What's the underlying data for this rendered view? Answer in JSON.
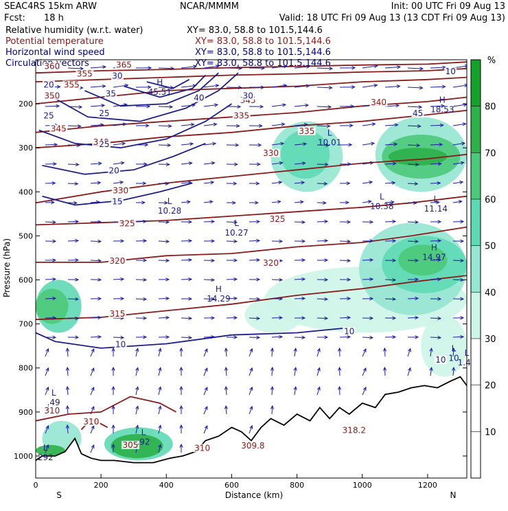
{
  "header": {
    "model": "SEAC4RS 15km ARW",
    "center": "NCAR/MMMM",
    "init": "Init: 00 UTC Fri 09 Aug 13",
    "fcst_label": "Fcst:",
    "fcst_value": "18 h",
    "valid": "Valid: 18 UTC Fri 09 Aug 13 (13 CDT Fri 09 Aug 13)"
  },
  "fields": [
    {
      "name": "Relative humidity (w.r.t. water)",
      "xy": "XY=  83.0, 58.8 to 101.5,144.6",
      "color": "#000000"
    },
    {
      "name": "Potential temperature",
      "xy": "XY=  83.0, 58.8 to 101.5,144.6",
      "color": "#8b1a1a"
    },
    {
      "name": "Horizontal wind speed",
      "xy": "XY=  83.0, 58.8 to 101.5,144.6",
      "color": "#00007f"
    },
    {
      "name": "Circulation vectors",
      "xy": "XY=  83.0, 58.8 to 101.5,144.6",
      "color": "#00007f"
    }
  ],
  "colors": {
    "theta": "#8b1a1a",
    "wind": "#1c1c8c",
    "vector": "#1a1aa0",
    "terrain": "#000000"
  },
  "chart_data": {
    "type": "heatmap",
    "xlabel": "Distance (km)",
    "ylabel": "Pressure (hPa)",
    "xlim": [
      0,
      1320
    ],
    "ylim": [
      1050,
      100
    ],
    "x_ticks": [
      0,
      200,
      400,
      600,
      800,
      1000,
      1200
    ],
    "y_ticks": [
      200,
      300,
      400,
      500,
      600,
      700,
      800,
      900,
      1000
    ],
    "end_labels": {
      "left": "S",
      "right": "N"
    },
    "colorbar": {
      "unit": "%",
      "levels": [
        10,
        20,
        30,
        40,
        50,
        60,
        70,
        80
      ],
      "colors": [
        "#ffffff",
        "#ffffff",
        "#ffffff",
        "#cdf5e8",
        "#96e6d2",
        "#5fd9b4",
        "#4cc97a",
        "#2eb04a",
        "#14a02a"
      ]
    },
    "rh_regions": [
      {
        "x": [
          20,
          140
        ],
        "p": [
          1000,
          920
        ],
        "rh": 45
      },
      {
        "x": [
          0,
          140
        ],
        "p": [
          720,
          600
        ],
        "rh": 50
      },
      {
        "x": [
          0,
          100
        ],
        "p": [
          700,
          620
        ],
        "rh": 65
      },
      {
        "x": [
          0,
          90
        ],
        "p": [
          1000,
          975
        ],
        "rh": 75
      },
      {
        "x": [
          210,
          420
        ],
        "p": [
          1010,
          935
        ],
        "rh": 50
      },
      {
        "x": [
          230,
          390
        ],
        "p": [
          1005,
          950
        ],
        "rh": 75
      },
      {
        "x": [
          720,
          940
        ],
        "p": [
          400,
          240
        ],
        "rh": 40
      },
      {
        "x": [
          750,
          900
        ],
        "p": [
          370,
          260
        ],
        "rh": 50
      },
      {
        "x": [
          1040,
          1320
        ],
        "p": [
          400,
          230
        ],
        "rh": 45
      },
      {
        "x": [
          1060,
          1300
        ],
        "p": [
          370,
          270
        ],
        "rh": 60
      },
      {
        "x": [
          1080,
          1260
        ],
        "p": [
          340,
          300
        ],
        "rh": 75
      },
      {
        "x": [
          700,
          1320
        ],
        "p": [
          720,
          570
        ],
        "rh": 35
      },
      {
        "x": [
          990,
          1320
        ],
        "p": [
          680,
          470
        ],
        "rh": 45
      },
      {
        "x": [
          1060,
          1320
        ],
        "p": [
          630,
          500
        ],
        "rh": 55
      },
      {
        "x": [
          1110,
          1260
        ],
        "p": [
          590,
          520
        ],
        "rh": 65
      },
      {
        "x": [
          1180,
          1320
        ],
        "p": [
          820,
          680
        ],
        "rh": 35
      },
      {
        "x": [
          640,
          820
        ],
        "p": [
          720,
          640
        ],
        "rh": 35
      }
    ],
    "theta_contours": [
      {
        "label": "310",
        "points": [
          [
            0,
            920
          ],
          [
            100,
            905
          ],
          [
            200,
            900
          ],
          [
            290,
            865
          ],
          [
            380,
            880
          ],
          [
            430,
            900
          ]
        ],
        "label_at": [
          50,
          900
        ]
      },
      {
        "label": "310",
        "points": [
          [
            140,
            940
          ],
          [
            170,
            915
          ],
          [
            220,
            935
          ]
        ],
        "label_at": [
          170,
          925
        ]
      },
      {
        "label": "315",
        "points": [
          [
            0,
            690
          ],
          [
            200,
            685
          ],
          [
            400,
            670
          ],
          [
            600,
            655
          ],
          [
            800,
            635
          ],
          [
            1000,
            620
          ],
          [
            1150,
            605
          ],
          [
            1320,
            590
          ]
        ],
        "label_at": [
          250,
          680
        ]
      },
      {
        "label": "320",
        "points": [
          [
            0,
            560
          ],
          [
            200,
            560
          ],
          [
            400,
            545
          ],
          [
            600,
            540
          ],
          [
            800,
            525
          ],
          [
            1000,
            515
          ],
          [
            1150,
            500
          ],
          [
            1320,
            480
          ]
        ],
        "label_at": [
          250,
          560
        ]
      },
      {
        "label": "325",
        "points": [
          [
            0,
            475
          ],
          [
            200,
            470
          ],
          [
            400,
            465
          ],
          [
            600,
            455
          ],
          [
            800,
            445
          ],
          [
            1000,
            435
          ],
          [
            1150,
            425
          ],
          [
            1320,
            410
          ]
        ],
        "label_at": [
          280,
          475
        ]
      },
      {
        "label": "330",
        "points": [
          [
            0,
            425
          ],
          [
            200,
            400
          ],
          [
            400,
            380
          ],
          [
            600,
            365
          ],
          [
            800,
            350
          ],
          [
            1000,
            335
          ],
          [
            1200,
            325
          ],
          [
            1320,
            315
          ]
        ],
        "label_at": [
          260,
          400
        ]
      },
      {
        "label": "340",
        "points": [
          [
            0,
            300
          ],
          [
            200,
            290
          ],
          [
            400,
            275
          ],
          [
            600,
            265
          ],
          [
            800,
            250
          ],
          [
            1000,
            240
          ],
          [
            1200,
            225
          ],
          [
            1320,
            215
          ]
        ],
        "label_at": [
          200,
          290
        ]
      },
      {
        "label": "345",
        "points": [
          [
            0,
            265
          ],
          [
            200,
            250
          ],
          [
            400,
            240
          ],
          [
            600,
            230
          ],
          [
            800,
            220
          ],
          [
            1000,
            205
          ],
          [
            1200,
            195
          ],
          [
            1320,
            185
          ]
        ],
        "label_at": [
          70,
          260
        ]
      },
      {
        "label": "350",
        "points": [
          [
            0,
            200
          ],
          [
            200,
            185
          ],
          [
            400,
            170
          ],
          [
            600,
            165
          ],
          [
            800,
            160
          ],
          [
            1000,
            150
          ],
          [
            1200,
            145
          ],
          [
            1320,
            140
          ]
        ],
        "label_at": [
          50,
          185
        ]
      },
      {
        "label": "355",
        "points": [
          [
            0,
            150
          ],
          [
            200,
            145
          ],
          [
            400,
            140
          ],
          [
            600,
            135
          ],
          [
            800,
            132
          ],
          [
            1000,
            128
          ],
          [
            1200,
            125
          ],
          [
            1320,
            120
          ]
        ],
        "label_at": [
          150,
          135
        ]
      },
      {
        "label": "360",
        "points": [
          [
            0,
            130
          ],
          [
            200,
            125
          ],
          [
            400,
            122
          ],
          [
            600,
            118
          ],
          [
            800,
            115
          ],
          [
            1000,
            112
          ],
          [
            1200,
            110
          ],
          [
            1320,
            105
          ]
        ],
        "label_at": [
          50,
          118
        ]
      }
    ],
    "theta_labels": [
      {
        "text": "305",
        "at": [
          290,
          978
        ]
      },
      {
        "text": "310",
        "at": [
          510,
          985
        ]
      },
      {
        "text": "309.8",
        "at": [
          665,
          980
        ]
      },
      {
        "text": "318.2",
        "at": [
          975,
          945
        ]
      },
      {
        "text": "320",
        "at": [
          720,
          565
        ]
      },
      {
        "text": "325",
        "at": [
          740,
          465
        ]
      },
      {
        "text": "330",
        "at": [
          720,
          315
        ]
      },
      {
        "text": "335",
        "at": [
          830,
          265
        ]
      },
      {
        "text": "335",
        "at": [
          630,
          230
        ]
      },
      {
        "text": "340",
        "at": [
          1050,
          200
        ]
      },
      {
        "text": "345",
        "at": [
          650,
          195
        ]
      },
      {
        "text": "355",
        "at": [
          110,
          160
        ]
      },
      {
        "text": "365",
        "at": [
          270,
          115
        ]
      }
    ],
    "wind_contours": [
      {
        "label": "10",
        "points": [
          [
            0,
            720
          ],
          [
            60,
            740
          ],
          [
            200,
            755
          ],
          [
            400,
            745
          ],
          [
            600,
            725
          ],
          [
            800,
            720
          ],
          [
            940,
            710
          ]
        ],
        "label_at": [
          260,
          750
        ]
      },
      {
        "label": "15",
        "points": [
          [
            20,
            410
          ],
          [
            120,
            430
          ],
          [
            260,
            420
          ],
          [
            380,
            400
          ],
          [
            480,
            380
          ]
        ],
        "label_at": [
          250,
          425
        ]
      },
      {
        "label": "20",
        "points": [
          [
            20,
            340
          ],
          [
            150,
            360
          ],
          [
            300,
            350
          ],
          [
            420,
            320
          ],
          [
            520,
            290
          ]
        ],
        "label_at": [
          240,
          355
        ]
      },
      {
        "label": "25",
        "points": [
          [
            10,
            260
          ],
          [
            120,
            290
          ],
          [
            260,
            300
          ],
          [
            400,
            280
          ],
          [
            520,
            240
          ],
          [
            600,
            200
          ]
        ],
        "label_at": [
          210,
          295
        ]
      },
      {
        "label": "30",
        "points": [
          [
            40,
            180
          ],
          [
            160,
            230
          ],
          [
            320,
            240
          ],
          [
            460,
            210
          ],
          [
            560,
            170
          ],
          [
            620,
            130
          ]
        ],
        "label_at": [
          650,
          185
        ]
      },
      {
        "label": "35",
        "points": [
          [
            150,
            170
          ],
          [
            260,
            205
          ],
          [
            400,
            200
          ],
          [
            500,
            170
          ],
          [
            560,
            130
          ]
        ],
        "label_at": [
          230,
          180
        ]
      },
      {
        "label": "40",
        "points": [
          [
            270,
            160
          ],
          [
            380,
            185
          ],
          [
            480,
            165
          ],
          [
            520,
            135
          ]
        ],
        "label_at": [
          500,
          190
        ]
      },
      {
        "label": "45",
        "points": [
          [
            340,
            150
          ],
          [
            420,
            165
          ],
          [
            470,
            145
          ]
        ],
        "label_at": [
          1170,
          225
        ]
      }
    ],
    "wind_labels": [
      {
        "text": "20",
        "at": [
          40,
          160
        ]
      },
      {
        "text": "25",
        "at": [
          40,
          230
        ]
      },
      {
        "text": "25",
        "at": [
          210,
          225
        ]
      },
      {
        "text": "30",
        "at": [
          250,
          140
        ]
      },
      {
        "text": "10",
        "at": [
          960,
          720
        ]
      },
      {
        "text": "10",
        "at": [
          1240,
          785
        ]
      },
      {
        "text": "10",
        "at": [
          1270,
          130
        ]
      }
    ],
    "extrema": [
      {
        "type": "H",
        "value": "45.51",
        "at": [
          380,
          170
        ]
      },
      {
        "type": "H",
        "value": "18.53",
        "at": [
          1245,
          210
        ]
      },
      {
        "type": "L",
        "value": "10.01",
        "at": [
          900,
          285
        ]
      },
      {
        "type": "L",
        "value": "10.28",
        "at": [
          410,
          440
        ]
      },
      {
        "type": "L",
        "value": "10.27",
        "at": [
          615,
          490
        ]
      },
      {
        "type": "L",
        "value": "10.38",
        "at": [
          1060,
          430
        ]
      },
      {
        "type": "L",
        "value": "11.14",
        "at": [
          1225,
          435
        ]
      },
      {
        "type": "H",
        "value": "14.97",
        "at": [
          1220,
          545
        ]
      },
      {
        "type": "H",
        "value": "14.29",
        "at": [
          560,
          640
        ]
      },
      {
        "type": "L",
        "value": ".49",
        "at": [
          55,
          875
        ]
      },
      {
        "type": "L",
        "value": ".92",
        "at": [
          330,
          965
        ]
      },
      {
        "type": "L",
        "value": "292",
        "at": [
          30,
          1000
        ]
      },
      {
        "type": "L",
        "value": "10",
        "at": [
          1280,
          775
        ]
      },
      {
        "type": "L",
        "value": "1.44",
        "at": [
          1320,
          785
        ]
      }
    ],
    "terrain": [
      [
        0,
        1010
      ],
      [
        20,
        1000
      ],
      [
        60,
        1000
      ],
      [
        90,
        990
      ],
      [
        120,
        960
      ],
      [
        140,
        995
      ],
      [
        170,
        1005
      ],
      [
        200,
        1010
      ],
      [
        240,
        1010
      ],
      [
        300,
        1015
      ],
      [
        360,
        1015
      ],
      [
        410,
        1005
      ],
      [
        450,
        1000
      ],
      [
        490,
        990
      ],
      [
        520,
        965
      ],
      [
        560,
        955
      ],
      [
        600,
        935
      ],
      [
        630,
        945
      ],
      [
        660,
        965
      ],
      [
        690,
        935
      ],
      [
        720,
        915
      ],
      [
        760,
        930
      ],
      [
        800,
        905
      ],
      [
        840,
        920
      ],
      [
        870,
        890
      ],
      [
        900,
        915
      ],
      [
        930,
        890
      ],
      [
        960,
        905
      ],
      [
        1000,
        880
      ],
      [
        1040,
        890
      ],
      [
        1070,
        860
      ],
      [
        1110,
        855
      ],
      [
        1150,
        845
      ],
      [
        1190,
        840
      ],
      [
        1230,
        845
      ],
      [
        1270,
        830
      ],
      [
        1300,
        820
      ],
      [
        1320,
        840
      ]
    ]
  }
}
